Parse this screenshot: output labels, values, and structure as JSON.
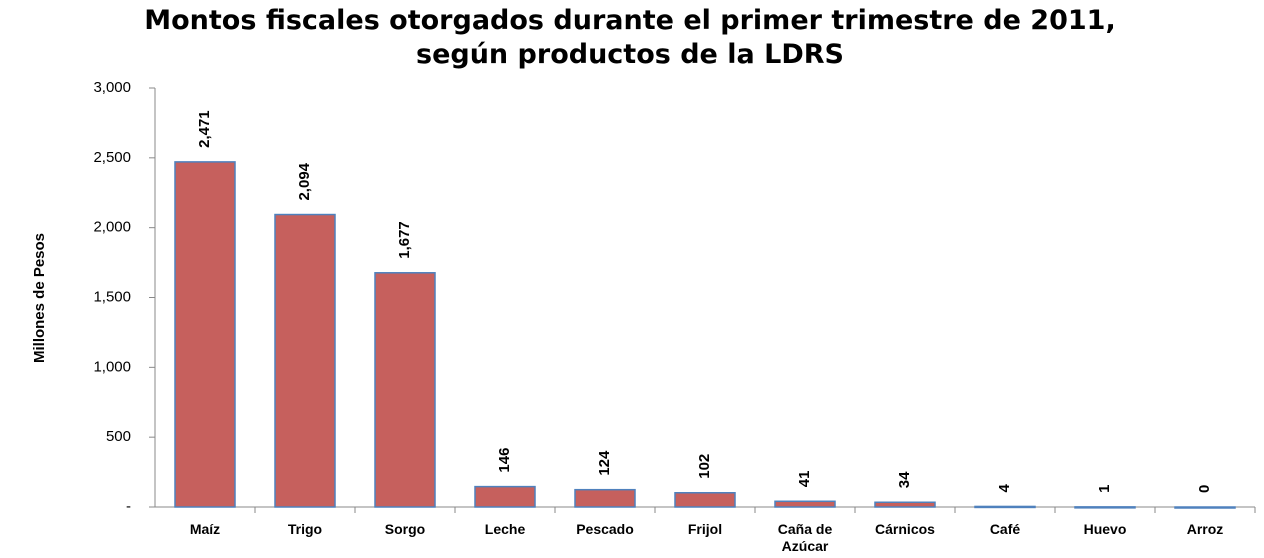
{
  "chart_data": {
    "type": "bar",
    "title": "Montos fiscales otorgados durante el primer trimestre de 2011, según productos de la LDRS",
    "y_label": "Millones de Pesos",
    "categories": [
      "Maíz",
      "Trigo",
      "Sorgo",
      "Leche",
      "Pescado",
      "Frijol",
      "Caña de Azúcar",
      "Cárnicos",
      "Café",
      "Huevo",
      "Arroz"
    ],
    "values": [
      2471,
      2094,
      1677,
      146,
      124,
      102,
      41,
      34,
      4,
      1,
      0
    ],
    "value_labels": [
      "2,471",
      "2,094",
      "1,677",
      "146",
      "124",
      "102",
      "41",
      "34",
      "4",
      "1",
      "0"
    ],
    "color": "#c6605d",
    "edge_color": "#4f81bd",
    "ylim": [
      0,
      3000
    ],
    "yticks": [
      {
        "value": 0,
        "label": "-"
      },
      500,
      {
        "value": 1000,
        "label": "1,000"
      },
      {
        "value": 1500,
        "label": "1,500"
      },
      {
        "value": 2000,
        "label": "2,000"
      },
      {
        "value": 2500,
        "label": "2,500"
      },
      {
        "value": 3000,
        "label": "3,000"
      }
    ],
    "grid": false
  }
}
